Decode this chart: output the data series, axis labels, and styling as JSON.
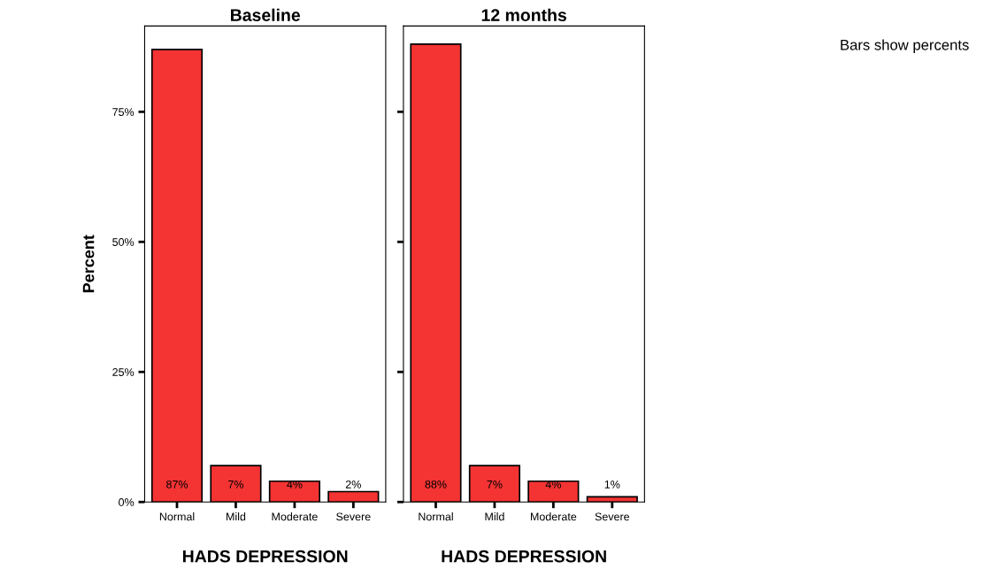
{
  "chart_data": [
    {
      "type": "bar",
      "title": "Baseline",
      "xlabel": "HADS DEPRESSION",
      "ylabel": "Percent",
      "categories": [
        "Normal",
        "Mild",
        "Moderate",
        "Severe"
      ],
      "values": [
        87,
        7,
        4,
        2
      ],
      "value_labels": [
        "87%",
        "7%",
        "4%",
        "2%"
      ],
      "color": "#f43333",
      "ylim": [
        0,
        91.5
      ],
      "yticks": [
        {
          "value": 0,
          "label": "0%"
        },
        {
          "value": 25,
          "label": "25%"
        },
        {
          "value": 50,
          "label": "50%"
        },
        {
          "value": 75,
          "label": "75%"
        }
      ],
      "grid": false
    },
    {
      "type": "bar",
      "title": "12 months",
      "xlabel": "HADS DEPRESSION",
      "categories": [
        "Normal",
        "Mild",
        "Moderate",
        "Severe"
      ],
      "values": [
        88,
        7,
        4,
        1
      ],
      "value_labels": [
        "88%",
        "7%",
        "4%",
        "1%"
      ],
      "color": "#f43333",
      "ylim": [
        0,
        91.5
      ],
      "yticks": [
        {
          "value": 0,
          "label": null
        },
        {
          "value": 25,
          "label": null
        },
        {
          "value": 50,
          "label": null
        },
        {
          "value": 75,
          "label": null
        }
      ],
      "tick_labels": "x",
      "grid": false,
      "annotations": [
        "Bars show percents"
      ]
    }
  ]
}
